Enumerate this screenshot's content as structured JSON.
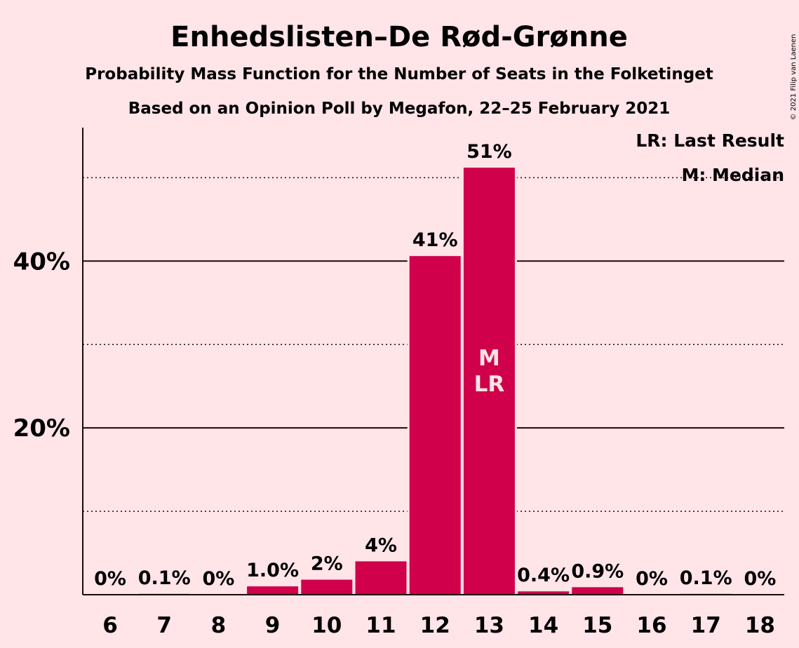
{
  "chart_data": {
    "type": "bar",
    "title": "Enhedslisten–De Rød-Grønne",
    "subtitle": "Probability Mass Function for the Number of Seats in the Folketinget",
    "subtitle2": "Based on an Opinion Poll by Megafon, 22–25 February 2021",
    "categories": [
      "6",
      "7",
      "8",
      "9",
      "10",
      "11",
      "12",
      "13",
      "14",
      "15",
      "16",
      "17",
      "18"
    ],
    "values": [
      0,
      0.1,
      0,
      1.0,
      1.8,
      4.0,
      40.6,
      51.2,
      0.4,
      0.9,
      0,
      0.1,
      0
    ],
    "labels": [
      "0%",
      "0.1%",
      "0%",
      "1.0%",
      "2%",
      "4%",
      "41%",
      "51%",
      "0.4%",
      "0.9%",
      "0%",
      "0.1%",
      "0%"
    ],
    "ylim": [
      0,
      56
    ],
    "yticks": [
      {
        "value": 20,
        "label": "20%"
      },
      {
        "value": 40,
        "label": "40%"
      }
    ],
    "minor_gridlines": [
      10,
      30,
      50
    ],
    "bar_color": "#d0004a",
    "markers": {
      "category": "13",
      "median": "M",
      "last_result": "LR"
    },
    "legend": {
      "placement": "top-right",
      "last_result": "LR: Last Result",
      "median": "M: Median"
    },
    "copyright": "© 2021 Filip van Laenen"
  }
}
